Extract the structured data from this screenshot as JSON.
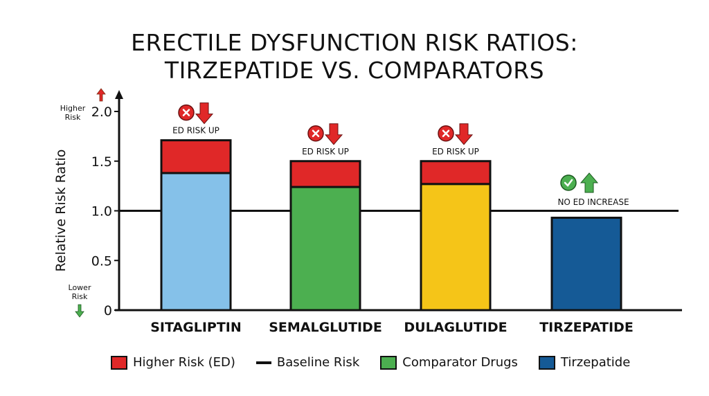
{
  "chart_data": {
    "type": "bar",
    "stacked": true,
    "title": "ERECTILE DYSFUNCTION RISK RATIOS: TIRZEPATIDE VS. COMPARATORS",
    "title_lines": [
      "ERECTILE DYSFUNCTION RISK RATIOS:",
      "TIRZEPATIDE VS. COMPARATORS"
    ],
    "ylabel": "Relative Risk Ratio",
    "ylim": [
      0,
      2.0
    ],
    "yticks": [
      {
        "v": 0,
        "label": "0"
      },
      {
        "v": 0.5,
        "label": "0.5"
      },
      {
        "v": 1.0,
        "label": "1.0"
      },
      {
        "v": 1.5,
        "label": "1.5"
      },
      {
        "v": 2.0,
        "label": "2.0"
      }
    ],
    "y_annotations": {
      "top": [
        "Higher",
        "Risk"
      ],
      "bottom": [
        "Lower",
        "Risk"
      ]
    },
    "baseline": 1.0,
    "grid": false,
    "categories": [
      "SITAGLIPTIN",
      "SEMALGLUTIDE",
      "DULAGLUTIDE",
      "TIRZEPATIDE"
    ],
    "bars": [
      {
        "category": "SITAGLIPTIN",
        "base": 1.38,
        "total": 1.71,
        "color": "#85c1e9",
        "annotation": "ED RISK UP",
        "status": "bad"
      },
      {
        "category": "SEMALGLUTIDE",
        "base": 1.24,
        "total": 1.5,
        "color": "#4caf50",
        "annotation": "ED RISK UP",
        "status": "bad"
      },
      {
        "category": "DULAGLUTIDE",
        "base": 1.27,
        "total": 1.5,
        "color": "#f5c518",
        "annotation": "ED RISK UP",
        "status": "bad"
      },
      {
        "category": "TIRZEPATIDE",
        "base": 0.93,
        "total": 0.93,
        "color": "#155a96",
        "annotation": "NO ED INCREASE",
        "status": "good"
      }
    ],
    "risk_color": "#e02828",
    "legend": [
      {
        "label": "Higher Risk (ED)",
        "kind": "box",
        "color": "#e02828"
      },
      {
        "label": "Baseline Risk",
        "kind": "line",
        "color": "#111111"
      },
      {
        "label": "Comparator Drugs",
        "kind": "box",
        "color": "#4caf50"
      },
      {
        "label": "Tirzepatide",
        "kind": "box",
        "color": "#155a96"
      }
    ],
    "legend_position": "bottom"
  }
}
